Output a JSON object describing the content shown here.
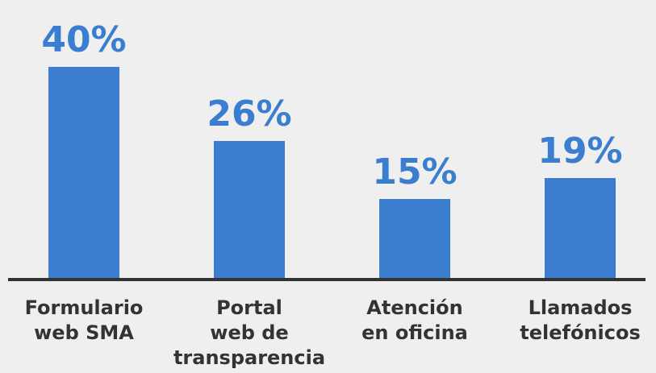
{
  "chart_data": {
    "type": "bar",
    "categories": [
      "Formulario\nweb SMA",
      "Portal\nweb de\ntransparencia",
      "Atención\nen oficina",
      "Llamados\ntelefónicos"
    ],
    "values": [
      40,
      26,
      15,
      19
    ],
    "value_labels": [
      "40%",
      "26%",
      "15%",
      "19%"
    ],
    "color": "#3b7ed0"
  }
}
